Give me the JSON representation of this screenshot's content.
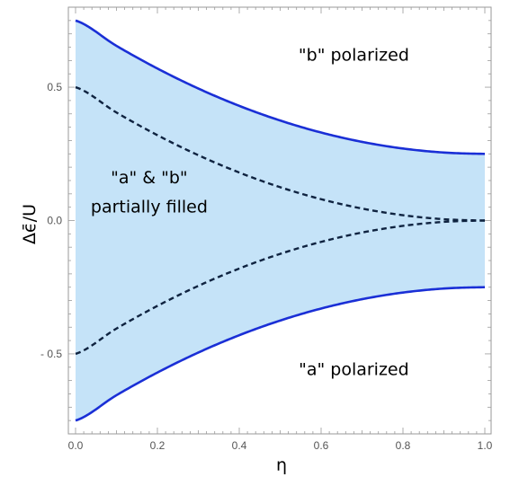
{
  "chart_data": {
    "type": "area",
    "title": "",
    "xlabel": "η",
    "ylabel": "Δϵ̄/U",
    "xlim": [
      0,
      1
    ],
    "ylim": [
      -0.8,
      0.8
    ],
    "x_ticks": [
      0,
      0.2,
      0.4,
      0.6,
      0.8,
      1.0
    ],
    "x_tick_labels": [
      "0.0",
      "0.2",
      "0.4",
      "0.6",
      "0.8",
      "1.0"
    ],
    "y_ticks": [
      -0.5,
      0,
      0.5
    ],
    "y_tick_labels": [
      "- 0.5",
      "0.0",
      "0.5"
    ],
    "grid": false,
    "x": [
      0,
      0.1,
      0.2,
      0.3,
      0.4,
      0.5,
      0.6,
      0.7,
      0.8,
      0.9,
      1.0
    ],
    "series": [
      {
        "style": "solid",
        "role": "upper-boundary",
        "values": [
          0.75,
          0.655,
          0.57,
          0.495,
          0.43,
          0.375,
          0.33,
          0.295,
          0.27,
          0.255,
          0.25
        ]
      },
      {
        "style": "dashed",
        "role": "upper-inner",
        "values": [
          0.5,
          0.405,
          0.32,
          0.245,
          0.18,
          0.125,
          0.08,
          0.045,
          0.02,
          0.005,
          0.0
        ]
      },
      {
        "style": "dashed",
        "role": "lower-inner",
        "values": [
          -0.5,
          -0.405,
          -0.32,
          -0.245,
          -0.18,
          -0.125,
          -0.08,
          -0.045,
          -0.02,
          -0.005,
          0.0
        ]
      },
      {
        "style": "solid",
        "role": "lower-boundary",
        "values": [
          -0.75,
          -0.655,
          -0.57,
          -0.495,
          -0.43,
          -0.375,
          -0.33,
          -0.295,
          -0.27,
          -0.255,
          -0.25
        ]
      }
    ],
    "annotations": [
      {
        "text": "\"b\" polarized",
        "x": 0.68,
        "y": 0.6
      },
      {
        "text": "\"a\" & \"b\"",
        "x": 0.18,
        "y": 0.14
      },
      {
        "text": "partially filled",
        "x": 0.18,
        "y": 0.03
      },
      {
        "text": "\"a\" polarized",
        "x": 0.68,
        "y": -0.58
      }
    ],
    "colors": {
      "fill": "#c5e3f8",
      "solid_line": "#1a2fd6",
      "dashed_line": "#0f2340",
      "frame": "#9a9a9a"
    }
  }
}
